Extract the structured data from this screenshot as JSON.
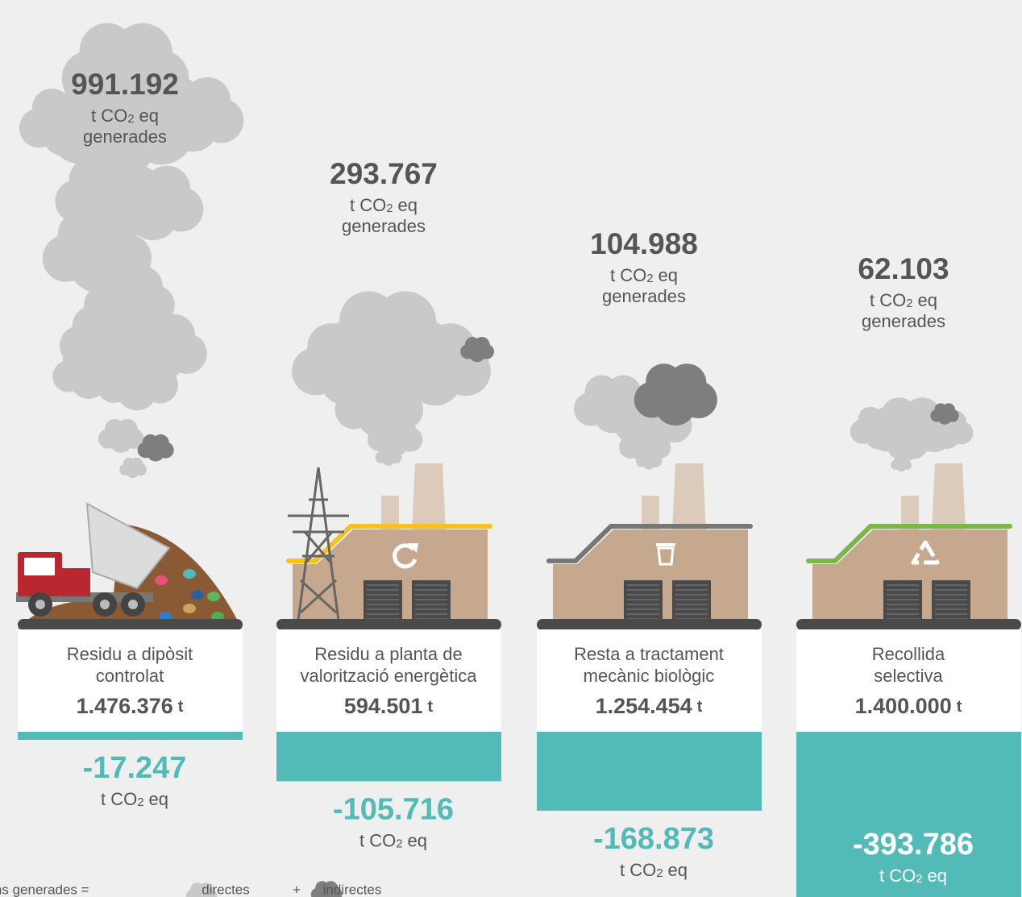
{
  "unit_co2": {
    "pre": "t CO",
    "sub": "2",
    "post": "eq"
  },
  "generated": "generades",
  "columns": [
    {
      "emissions": "991.192",
      "label": [
        "Residu a dipòsit",
        "controlat"
      ],
      "tonnage": "1.476.376",
      "tonnage_unit": "t",
      "savings": {
        "value": -17247,
        "label": "-17.247"
      }
    },
    {
      "emissions": "293.767",
      "label": [
        "Residu a planta de",
        "valorització energètica"
      ],
      "tonnage": "594.501",
      "tonnage_unit": "t",
      "savings": {
        "value": -105716,
        "label": "-105.716"
      }
    },
    {
      "emissions": "104.988",
      "label": [
        "Resta a tractament",
        "mecànic biològic"
      ],
      "tonnage": "1.254.454",
      "tonnage_unit": "t",
      "savings": {
        "value": -168873,
        "label": "-168.873"
      }
    },
    {
      "emissions": "62.103",
      "label": [
        "Recollida",
        "selectiva"
      ],
      "tonnage": "1.400.000",
      "tonnage_unit": "t",
      "savings": {
        "value": -393786,
        "label": "-393.786"
      }
    }
  ],
  "legend": {
    "label": "Emissions generades =",
    "direct": "directes",
    "plus": "+",
    "indirect": "indirectes"
  }
}
